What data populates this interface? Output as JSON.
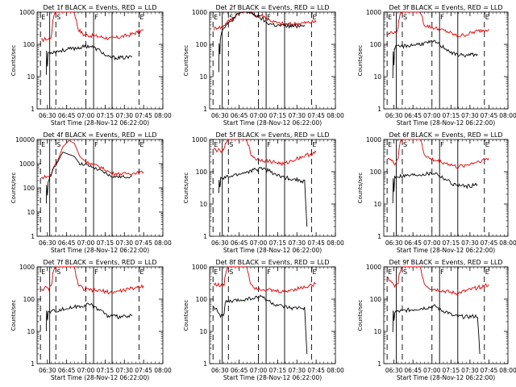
{
  "chart_data": [
    {
      "type": "line",
      "title": "Det 1f BLACK = Events, RED = LLD",
      "xlabel": "Start Time (28-Nov-12 06:22:00)",
      "ylabel": "Counts/sec",
      "ylim": [
        1,
        1000
      ],
      "y_scale": "log",
      "red": [
        [
          6.42,
          130
        ],
        [
          6.48,
          150
        ],
        [
          6.51,
          140
        ],
        [
          6.555,
          180
        ],
        [
          6.57,
          600
        ],
        [
          6.6,
          1000
        ],
        [
          6.62,
          1000
        ],
        [
          6.85,
          1000
        ],
        [
          6.9,
          300
        ],
        [
          6.97,
          200
        ],
        [
          7.2,
          170
        ],
        [
          7.33,
          150
        ],
        [
          7.45,
          170
        ],
        [
          7.58,
          200
        ],
        [
          7.75,
          280
        ]
      ],
      "black": [
        [
          6.485,
          12
        ],
        [
          6.49,
          60
        ],
        [
          6.5,
          18
        ],
        [
          6.505,
          40
        ],
        [
          6.51,
          55
        ],
        [
          7.05,
          90
        ],
        [
          7.12,
          75
        ],
        [
          7.2,
          60
        ],
        [
          7.28,
          40
        ],
        [
          7.45,
          38
        ],
        [
          7.6,
          40
        ]
      ]
    },
    {
      "type": "line",
      "title": "Det 2f BLACK = Events, RED = LLD",
      "xlabel": "Start Time (28-Nov-12 06:22:00)",
      "ylabel": "Counts/sec",
      "ylim": [
        1,
        1000
      ],
      "y_scale": "log",
      "red": [
        [
          6.42,
          300
        ],
        [
          6.48,
          350
        ],
        [
          6.51,
          330
        ],
        [
          6.555,
          400
        ],
        [
          6.6,
          500
        ],
        [
          6.72,
          800
        ],
        [
          6.82,
          1200
        ],
        [
          6.9,
          900
        ],
        [
          6.98,
          800
        ],
        [
          7.05,
          800
        ],
        [
          7.12,
          600
        ],
        [
          7.25,
          450
        ],
        [
          7.4,
          420
        ],
        [
          7.5,
          440
        ],
        [
          7.75,
          500
        ]
      ],
      "black": [
        [
          6.485,
          15
        ],
        [
          6.49,
          120
        ],
        [
          6.5,
          50
        ],
        [
          6.505,
          150
        ],
        [
          6.51,
          180
        ],
        [
          6.55,
          350
        ],
        [
          6.62,
          450
        ],
        [
          6.72,
          800
        ],
        [
          6.82,
          1100
        ],
        [
          6.92,
          900
        ],
        [
          7.0,
          700
        ],
        [
          7.05,
          600
        ],
        [
          7.12,
          450
        ],
        [
          7.25,
          380
        ],
        [
          7.45,
          360
        ],
        [
          7.6,
          400
        ]
      ]
    },
    {
      "type": "line",
      "title": "Det 3f BLACK = Events, RED = LLD",
      "xlabel": "Start Time (28-Nov-12 06:22:00)",
      "ylabel": "Counts/sec",
      "ylim": [
        1,
        1000
      ],
      "y_scale": "log",
      "red": [
        [
          6.42,
          200
        ],
        [
          6.48,
          250
        ],
        [
          6.51,
          220
        ],
        [
          6.555,
          300
        ],
        [
          6.57,
          700
        ],
        [
          6.6,
          1000
        ],
        [
          6.85,
          1000
        ],
        [
          6.9,
          400
        ],
        [
          6.97,
          350
        ],
        [
          7.2,
          250
        ],
        [
          7.33,
          180
        ],
        [
          7.45,
          200
        ],
        [
          7.58,
          250
        ],
        [
          7.75,
          300
        ]
      ],
      "black": [
        [
          6.485,
          10
        ],
        [
          6.49,
          60
        ],
        [
          6.5,
          20
        ],
        [
          6.505,
          70
        ],
        [
          6.51,
          80
        ],
        [
          7.05,
          120
        ],
        [
          7.12,
          90
        ],
        [
          7.2,
          70
        ],
        [
          7.28,
          50
        ],
        [
          7.45,
          45
        ],
        [
          7.6,
          50
        ]
      ]
    },
    {
      "type": "line",
      "title": "Det 4f BLACK = Events, RED = LLD",
      "xlabel": "Start Time (28-Nov-12 06:22:00)",
      "ylabel": "Counts/sec",
      "ylim": [
        1,
        10000
      ],
      "y_scale": "log",
      "red": [
        [
          6.42,
          250
        ],
        [
          6.48,
          300
        ],
        [
          6.51,
          280
        ],
        [
          6.555,
          400
        ],
        [
          6.58,
          700
        ],
        [
          6.65,
          1800
        ],
        [
          6.7,
          5000
        ],
        [
          6.78,
          9000
        ],
        [
          6.85,
          7000
        ],
        [
          6.92,
          2000
        ],
        [
          7.0,
          1200
        ],
        [
          7.2,
          700
        ],
        [
          7.33,
          400
        ],
        [
          7.45,
          380
        ],
        [
          7.6,
          400
        ],
        [
          7.75,
          450
        ]
      ],
      "black": [
        [
          6.485,
          20
        ],
        [
          6.49,
          120
        ],
        [
          6.5,
          50
        ],
        [
          6.51,
          200
        ],
        [
          6.58,
          600
        ],
        [
          6.65,
          1500
        ],
        [
          6.7,
          3000
        ],
        [
          6.85,
          2000
        ],
        [
          6.92,
          1000
        ],
        [
          7.0,
          900
        ],
        [
          7.2,
          500
        ],
        [
          7.33,
          300
        ],
        [
          7.45,
          280
        ],
        [
          7.6,
          300
        ]
      ]
    },
    {
      "type": "line",
      "title": "Det 5f BLACK = Events, RED = LLD",
      "xlabel": "Start Time (28-Nov-12 06:22:00)",
      "ylabel": "Counts/sec",
      "ylim": [
        1,
        1000
      ],
      "y_scale": "log",
      "red": [
        [
          6.42,
          500
        ],
        [
          6.48,
          450
        ],
        [
          6.51,
          420
        ],
        [
          6.555,
          480
        ],
        [
          6.57,
          700
        ],
        [
          6.6,
          1000
        ],
        [
          6.85,
          1000
        ],
        [
          6.9,
          350
        ],
        [
          6.97,
          250
        ],
        [
          7.2,
          200
        ],
        [
          7.33,
          170
        ],
        [
          7.45,
          230
        ],
        [
          7.58,
          300
        ],
        [
          7.75,
          400
        ]
      ],
      "black": [
        [
          6.485,
          20
        ],
        [
          6.49,
          60
        ],
        [
          6.5,
          30
        ],
        [
          6.51,
          60
        ],
        [
          7.05,
          130
        ],
        [
          7.12,
          110
        ],
        [
          7.2,
          90
        ],
        [
          7.28,
          70
        ],
        [
          7.45,
          60
        ],
        [
          7.6,
          50
        ],
        [
          7.63,
          2
        ]
      ]
    },
    {
      "type": "line",
      "title": "Det 6f BLACK = Events, RED = LLD",
      "xlabel": "Start Time (28-Nov-12 06:22:00)",
      "ylabel": "Counts/sec",
      "ylim": [
        1,
        1000
      ],
      "y_scale": "log",
      "red": [
        [
          6.42,
          280
        ],
        [
          6.48,
          200
        ],
        [
          6.51,
          180
        ],
        [
          6.555,
          260
        ],
        [
          6.57,
          600
        ],
        [
          6.6,
          1000
        ],
        [
          6.85,
          1000
        ],
        [
          6.9,
          350
        ],
        [
          6.97,
          250
        ],
        [
          7.2,
          180
        ],
        [
          7.33,
          140
        ],
        [
          7.45,
          160
        ],
        [
          7.58,
          200
        ],
        [
          7.75,
          260
        ]
      ],
      "black": [
        [
          6.485,
          10
        ],
        [
          6.49,
          60
        ],
        [
          6.5,
          25
        ],
        [
          6.51,
          70
        ],
        [
          7.05,
          90
        ],
        [
          7.12,
          70
        ],
        [
          7.2,
          55
        ],
        [
          7.28,
          40
        ],
        [
          7.45,
          35
        ],
        [
          7.6,
          40
        ]
      ]
    },
    {
      "type": "line",
      "title": "Det 7f BLACK = Events, RED = LLD",
      "xlabel": "Start Time (28-Nov-12 06:22:00)",
      "ylabel": "Counts/sec",
      "ylim": [
        1,
        1000
      ],
      "y_scale": "log",
      "red": [
        [
          6.42,
          200
        ],
        [
          6.48,
          220
        ],
        [
          6.51,
          200
        ],
        [
          6.555,
          260
        ],
        [
          6.57,
          600
        ],
        [
          6.6,
          1000
        ],
        [
          6.85,
          1000
        ],
        [
          6.9,
          280
        ],
        [
          6.97,
          200
        ],
        [
          7.2,
          180
        ],
        [
          7.33,
          160
        ],
        [
          7.45,
          180
        ],
        [
          7.58,
          210
        ],
        [
          7.75,
          260
        ]
      ],
      "black": [
        [
          6.485,
          10
        ],
        [
          6.49,
          50
        ],
        [
          6.5,
          20
        ],
        [
          6.51,
          40
        ],
        [
          7.05,
          70
        ],
        [
          7.12,
          55
        ],
        [
          7.2,
          45
        ],
        [
          7.28,
          30
        ],
        [
          7.45,
          28
        ],
        [
          7.6,
          30
        ]
      ]
    },
    {
      "type": "line",
      "title": "Det 8f BLACK = Events, RED = LLD",
      "xlabel": "Start Time (28-Nov-12 06:22:00)",
      "ylabel": "Counts/sec",
      "ylim": [
        1,
        1000
      ],
      "y_scale": "log",
      "red": [
        [
          6.42,
          300
        ],
        [
          6.48,
          280
        ],
        [
          6.51,
          250
        ],
        [
          6.555,
          280
        ],
        [
          6.57,
          600
        ],
        [
          6.6,
          1000
        ],
        [
          6.85,
          1000
        ],
        [
          6.9,
          300
        ],
        [
          6.97,
          220
        ],
        [
          7.2,
          180
        ],
        [
          7.33,
          170
        ],
        [
          7.45,
          200
        ],
        [
          7.58,
          230
        ],
        [
          7.75,
          300
        ]
      ],
      "black": [
        [
          6.42,
          60
        ],
        [
          6.48,
          40
        ],
        [
          6.51,
          30
        ],
        [
          6.555,
          35
        ],
        [
          6.57,
          80
        ],
        [
          7.05,
          120
        ],
        [
          7.12,
          90
        ],
        [
          7.2,
          70
        ],
        [
          7.28,
          60
        ],
        [
          7.45,
          50
        ],
        [
          7.6,
          55
        ],
        [
          7.63,
          2
        ]
      ]
    },
    {
      "type": "line",
      "title": "Det 9f BLACK = Events, RED = LLD",
      "xlabel": "Start Time (28-Nov-12 06:22:00)",
      "ylabel": "Counts/sec",
      "ylim": [
        1,
        1000
      ],
      "y_scale": "log",
      "red": [
        [
          6.42,
          450
        ],
        [
          6.48,
          300
        ],
        [
          6.51,
          250
        ],
        [
          6.555,
          280
        ],
        [
          6.57,
          600
        ],
        [
          6.6,
          1000
        ],
        [
          6.85,
          1000
        ],
        [
          6.9,
          300
        ],
        [
          6.97,
          220
        ],
        [
          7.2,
          170
        ],
        [
          7.33,
          150
        ],
        [
          7.45,
          180
        ],
        [
          7.58,
          220
        ],
        [
          7.75,
          280
        ]
      ],
      "black": [
        [
          6.485,
          10
        ],
        [
          6.49,
          40
        ],
        [
          6.5,
          20
        ],
        [
          6.51,
          40
        ],
        [
          7.05,
          60
        ],
        [
          7.12,
          45
        ],
        [
          7.2,
          40
        ],
        [
          7.28,
          30
        ],
        [
          7.45,
          28
        ],
        [
          7.6,
          30
        ],
        [
          7.63,
          2
        ]
      ]
    }
  ],
  "shared": {
    "x_ticks": [
      "06:30",
      "06:45",
      "07:00",
      "07:15",
      "07:30",
      "07:45",
      "08:00"
    ],
    "x_tick_values": [
      6.5,
      6.75,
      7.0,
      7.25,
      7.5,
      7.75,
      8.0
    ],
    "xlim": [
      6.366,
      8.0
    ],
    "y_ticks_1000": [
      "1",
      "10",
      "100",
      "1000"
    ],
    "y_ticks_10000": [
      "1",
      "10",
      "100",
      "1000",
      "10000"
    ],
    "markers": [
      {
        "x": 6.41,
        "style": "dashed",
        "label": "E"
      },
      {
        "x": 6.53,
        "style": "solid",
        "label": ""
      },
      {
        "x": 6.61,
        "style": "dashed",
        "label": "S"
      },
      {
        "x": 7.0,
        "style": "dashed",
        "label": ""
      },
      {
        "x": 7.1,
        "style": "solid",
        "label": "F"
      },
      {
        "x": 7.34,
        "style": "solid",
        "label": ""
      },
      {
        "x": 7.69,
        "style": "dashed",
        "label": "E"
      }
    ],
    "colors": {
      "red": "#e00000",
      "black": "#000000"
    }
  }
}
